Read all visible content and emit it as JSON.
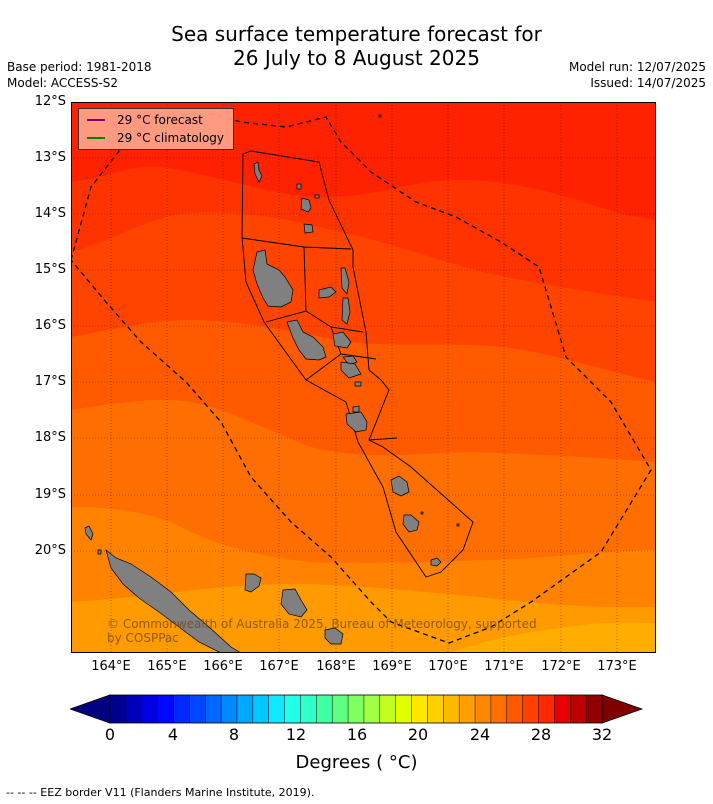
{
  "header": {
    "title_line1": "Sea surface temperature forecast for",
    "title_line2": "26 July to 8 August 2025",
    "base_period": "Base period: 1981-2018",
    "model": "Model: ACCESS-S2",
    "model_run": "Model run: 12/07/2025",
    "issued": "Issued: 14/07/2025"
  },
  "map": {
    "lat_labels": [
      "12°S",
      "13°S",
      "14°S",
      "15°S",
      "16°S",
      "17°S",
      "18°S",
      "19°S",
      "20°S"
    ],
    "lon_labels": [
      "164°E",
      "165°E",
      "166°E",
      "167°E",
      "168°E",
      "169°E",
      "170°E",
      "171°E",
      "172°E",
      "173°E"
    ],
    "legend": [
      {
        "label": "29 °C  forecast",
        "color": "#800080"
      },
      {
        "label": "29 °C  climatology",
        "color": "#008000"
      }
    ],
    "copyright": "© Commonwealth of Australia 2025, Bureau of Meteorology, supported by COSPPac",
    "colors": {
      "land": "#808080",
      "band_32": "#ff2200",
      "band_31": "#ff3300",
      "band_30": "#ff4400",
      "band_29": "#ff5a00",
      "band_28": "#ff6e00",
      "band_27": "#ff8200",
      "band_26": "#ff9a00",
      "band_25": "#ffae00"
    }
  },
  "colorbar": {
    "ticks": [
      "0",
      "4",
      "8",
      "12",
      "16",
      "20",
      "24",
      "28",
      "32"
    ],
    "label": "Degrees ( °C)",
    "colors": [
      "#000090",
      "#0000b8",
      "#0000e0",
      "#0008ff",
      "#0028ff",
      "#0048ff",
      "#0068ff",
      "#0088ff",
      "#00a8ff",
      "#00c8ff",
      "#10e8ff",
      "#20ffe8",
      "#30ffc8",
      "#40ffa0",
      "#60ff80",
      "#80ff60",
      "#a0ff40",
      "#c0ff20",
      "#e0ff00",
      "#ffe800",
      "#ffd000",
      "#ffb800",
      "#ffa000",
      "#ff8800",
      "#ff7000",
      "#ff5800",
      "#ff4000",
      "#ff2800",
      "#e80000",
      "#c00000",
      "#900000"
    ],
    "low_color": "#000080",
    "high_color": "#800000"
  },
  "footer": {
    "eez_text": "--  --  -- EEZ border V11 (Flanders Marine Institute, 2019)."
  }
}
